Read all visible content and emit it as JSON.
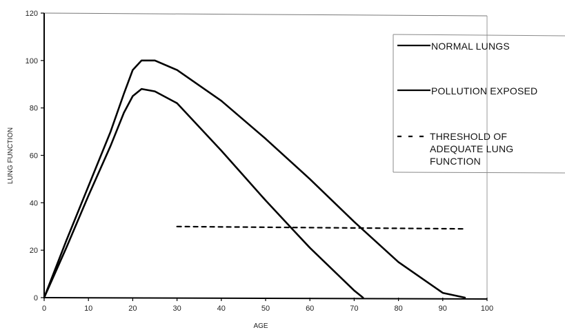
{
  "chart_data": {
    "type": "line",
    "title": "",
    "xlabel": "AGE",
    "ylabel": "LUNG FUNCTION",
    "xlim": [
      0,
      100
    ],
    "ylim": [
      0,
      120
    ],
    "xticks": [
      "0",
      "10",
      "20",
      "30",
      "40",
      "50",
      "60",
      "70",
      "80",
      "90",
      "100"
    ],
    "yticks": [
      "0",
      "20",
      "40",
      "60",
      "80",
      "100",
      "120"
    ],
    "grid": false,
    "legend_position": "top-right",
    "series": [
      {
        "name": "NORMAL LUNGS",
        "style": "solid",
        "color": "#000000",
        "points": [
          [
            0,
            0
          ],
          [
            5,
            24
          ],
          [
            10,
            47
          ],
          [
            15,
            70
          ],
          [
            18,
            86
          ],
          [
            20,
            96
          ],
          [
            22,
            100
          ],
          [
            25,
            100
          ],
          [
            30,
            96
          ],
          [
            40,
            83
          ],
          [
            50,
            67
          ],
          [
            60,
            50
          ],
          [
            70,
            32
          ],
          [
            80,
            15
          ],
          [
            90,
            2
          ],
          [
            95,
            0
          ]
        ]
      },
      {
        "name": "POLLUTION EXPOSED",
        "style": "solid",
        "color": "#000000",
        "points": [
          [
            0,
            0
          ],
          [
            5,
            21
          ],
          [
            10,
            43
          ],
          [
            15,
            64
          ],
          [
            18,
            78
          ],
          [
            20,
            85
          ],
          [
            22,
            88
          ],
          [
            25,
            87
          ],
          [
            30,
            82
          ],
          [
            40,
            62
          ],
          [
            50,
            41
          ],
          [
            56,
            29
          ],
          [
            60,
            21
          ],
          [
            65,
            12
          ],
          [
            70,
            3
          ],
          [
            72,
            0
          ]
        ]
      },
      {
        "name": "THRESHOLD OF ADEQUATE LUNG FUNCTION",
        "style": "dashed",
        "color": "#000000",
        "points": [
          [
            30,
            30
          ],
          [
            95,
            29
          ]
        ]
      }
    ]
  }
}
